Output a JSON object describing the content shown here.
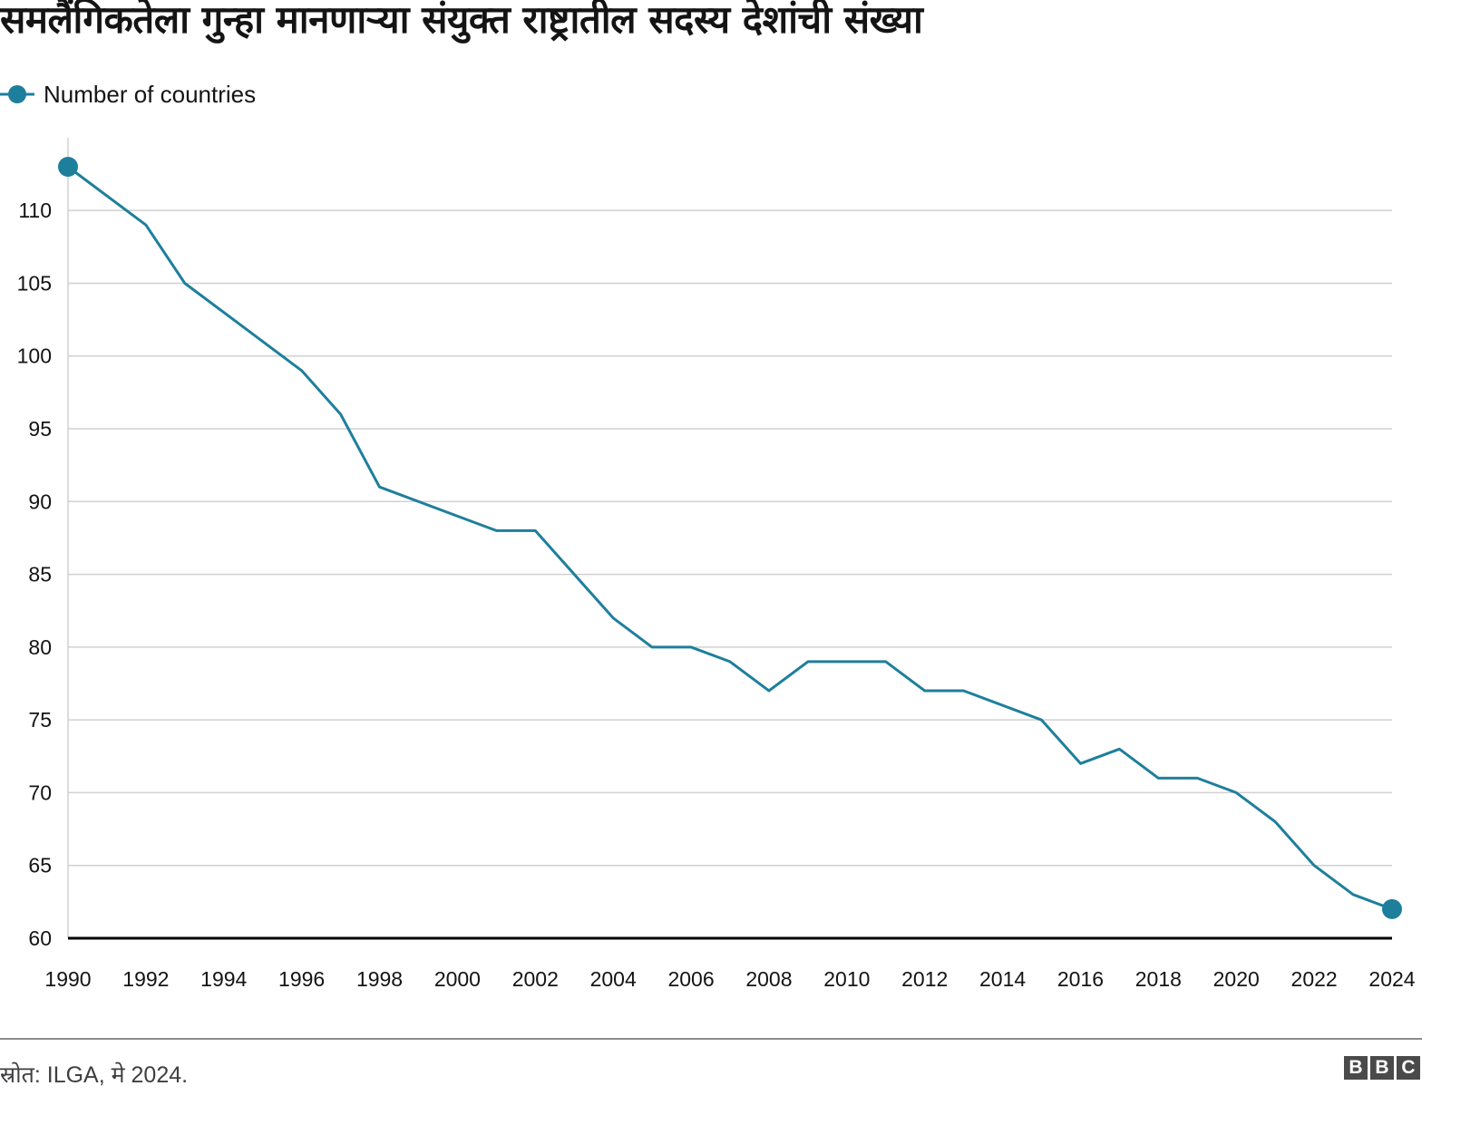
{
  "title": "समलैंगिकतेला गुन्हा मानणाऱ्या संयुक्त राष्ट्रातील सदस्य देशांची संख्या",
  "legend": {
    "label": "Number of countries"
  },
  "source": "स्रोत: ILGA, मे 2024.",
  "logo": [
    "B",
    "B",
    "C"
  ],
  "colors": {
    "line": "#1e7f9c",
    "grid": "#d0d0d0",
    "axis": "#000000"
  },
  "chart_data": {
    "type": "line",
    "title": "समलैंगिकतेला गुन्हा मानणाऱ्या संयुक्त राष्ट्रातील सदस्य देशांची संख्या",
    "xlabel": "",
    "ylabel": "",
    "xlim": [
      1990,
      2024
    ],
    "ylim": [
      60,
      112
    ],
    "xticks": [
      1990,
      1992,
      1994,
      1996,
      1998,
      2000,
      2002,
      2004,
      2006,
      2008,
      2010,
      2012,
      2014,
      2016,
      2018,
      2020,
      2022,
      2024
    ],
    "yticks": [
      60,
      65,
      70,
      75,
      80,
      85,
      90,
      95,
      100,
      105,
      110
    ],
    "grid": true,
    "legend_position": "top-left",
    "series": [
      {
        "name": "Number of countries",
        "x": [
          1990,
          1992,
          1993,
          1996,
          1997,
          1998,
          2001,
          2002,
          2004,
          2005,
          2006,
          2007,
          2008,
          2009,
          2011,
          2012,
          2013,
          2015,
          2016,
          2017,
          2018,
          2019,
          2020,
          2021,
          2022,
          2023,
          2024
        ],
        "values": [
          113,
          109,
          105,
          99,
          96,
          91,
          88,
          88,
          82,
          80,
          80,
          79,
          77,
          79,
          79,
          77,
          77,
          75,
          72,
          73,
          71,
          71,
          70,
          68,
          65,
          63,
          62
        ],
        "markers_at_ends": true
      }
    ]
  }
}
